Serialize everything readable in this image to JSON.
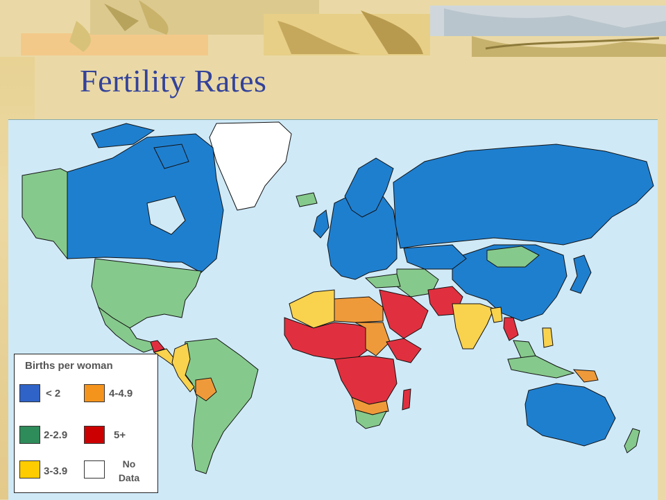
{
  "slide": {
    "title": "Fertility Rates"
  },
  "legend": {
    "title": "Births per woman",
    "items": [
      {
        "label": "< 2",
        "color": "#2f63c7"
      },
      {
        "label": "4-4.9",
        "color": "#f5941d"
      },
      {
        "label": "2-2.9",
        "color": "#2e8b5a"
      },
      {
        "label": "5+",
        "color": "#cc0000"
      },
      {
        "label": "3-3.9",
        "color": "#ffcc00"
      },
      {
        "label_line1": "No",
        "label_line2": "Data",
        "color": "#ffffff"
      }
    ]
  },
  "map_colors": {
    "ocean": "#cfe9f7",
    "lt2": "#1f7fcf",
    "r2to3": "#86c98c",
    "r3to4": "#f9d24e",
    "r4to5": "#ef9a3a",
    "r5plus": "#e0303f",
    "nodata": "#ffffff"
  }
}
